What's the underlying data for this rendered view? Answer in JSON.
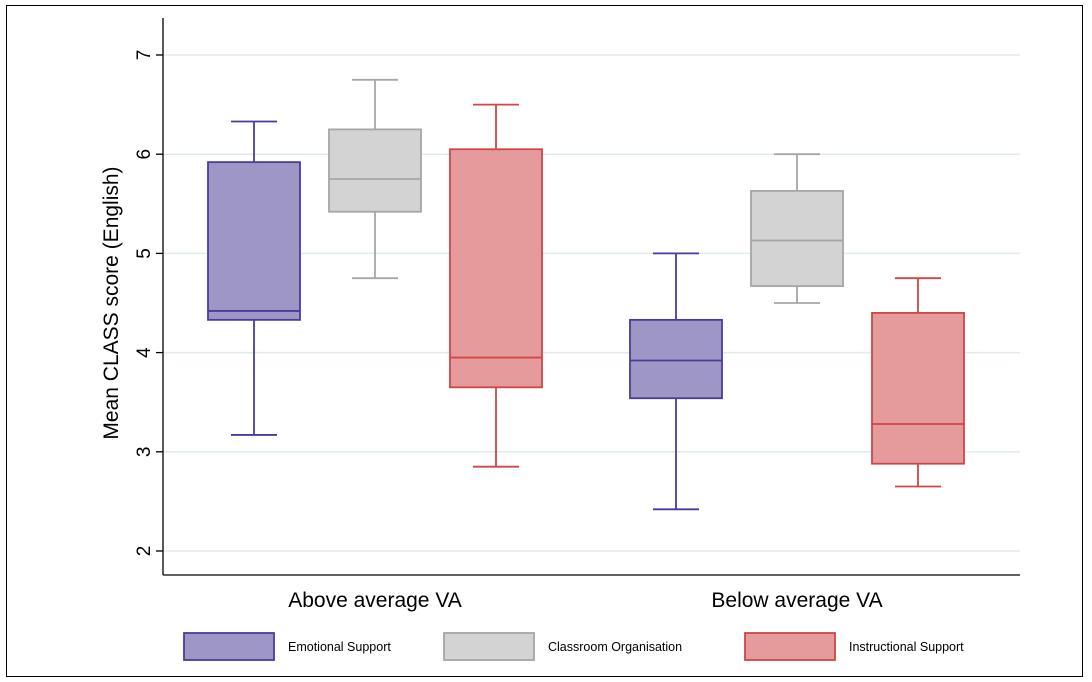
{
  "chart_data": {
    "type": "box",
    "ylabel": "Mean CLASS score (English)",
    "xlabel": "",
    "ylim": [
      1.95,
      7.2
    ],
    "yticks": [
      2,
      3,
      4,
      5,
      6,
      7
    ],
    "grid": true,
    "legend_position": "bottom",
    "categories": [
      "Above average VA",
      "Below average VA"
    ],
    "series": [
      {
        "name": "Emotional Support",
        "color": "#9e97c6",
        "stroke": "#4b3a9e",
        "boxes": [
          {
            "whisker_low": 3.17,
            "q1": 4.33,
            "median": 4.42,
            "q3": 5.92,
            "whisker_high": 6.33
          },
          {
            "whisker_low": 2.42,
            "q1": 3.54,
            "median": 3.92,
            "q3": 4.33,
            "whisker_high": 5.0
          }
        ]
      },
      {
        "name": "Classroom Organisation",
        "color": "#d2d3d2",
        "stroke": "#a5a6a6",
        "boxes": [
          {
            "whisker_low": 4.75,
            "q1": 5.42,
            "median": 5.75,
            "q3": 6.25,
            "whisker_high": 6.75
          },
          {
            "whisker_low": 4.5,
            "q1": 4.67,
            "median": 5.13,
            "q3": 5.63,
            "whisker_high": 6.0
          }
        ]
      },
      {
        "name": "Instructional Support",
        "color": "#e59b9b",
        "stroke": "#d04545",
        "boxes": [
          {
            "whisker_low": 2.85,
            "q1": 3.65,
            "median": 3.95,
            "q3": 6.05,
            "whisker_high": 6.5
          },
          {
            "whisker_low": 2.65,
            "q1": 2.88,
            "median": 3.28,
            "q3": 4.4,
            "whisker_high": 4.75
          }
        ]
      }
    ]
  }
}
